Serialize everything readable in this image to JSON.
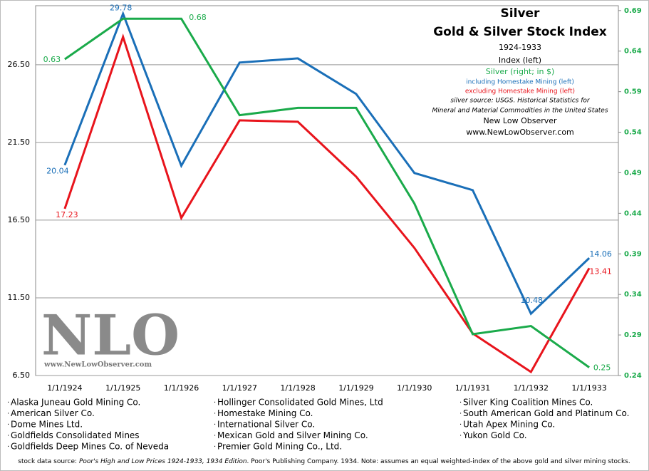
{
  "chart_data": {
    "type": "line",
    "title": "Silver",
    "subtitle": "Gold & Silver Stock Index",
    "period": "1924-1933",
    "y_axis_label": "Index (left)",
    "notes": [
      "silver source: USGS. Historical Statistics for",
      "Mineral and Material Commodities in the United States",
      "New Low Observer",
      "www.NewLowObserver.com"
    ],
    "watermark": [
      "NLO",
      "www.NewLowObserver.com"
    ],
    "categories": [
      "1/1/1924",
      "1/1/1925",
      "1/1/1926",
      "1/1/1927",
      "1/1/1928",
      "1/1/1929",
      "1/1/1930",
      "1/1/1931",
      "1/1/1932",
      "1/1/1933"
    ],
    "series": [
      {
        "name": "including Homestake Mining (left)",
        "color": "#1a6fb8",
        "values": [
          20.04,
          29.78,
          20.0,
          26.64,
          26.91,
          24.62,
          19.53,
          18.43,
          10.48,
          14.06
        ],
        "value_labels": [
          "20.04",
          "29.78",
          null,
          null,
          null,
          null,
          null,
          null,
          "10.48",
          "14.06"
        ]
      },
      {
        "name": "excluding Homestake Mining (left)",
        "color": "#e8141c",
        "values": [
          17.23,
          28.29,
          16.64,
          22.92,
          22.83,
          19.3,
          14.71,
          9.21,
          6.73,
          13.41
        ],
        "value_labels": [
          "17.23",
          null,
          null,
          null,
          null,
          null,
          null,
          null,
          null,
          "13.41"
        ]
      },
      {
        "name": "Silver (right; in $)",
        "color": "#1aaa4a",
        "axis": "y2",
        "values": [
          0.63,
          0.68,
          0.68,
          0.561,
          0.57,
          0.57,
          0.452,
          0.291,
          0.301,
          0.25
        ],
        "value_labels": [
          "0.63",
          null,
          "0.68",
          null,
          null,
          null,
          null,
          null,
          null,
          "0.25"
        ]
      }
    ],
    "ylim": [
      6.5,
      30.3
    ],
    "yticks": [
      {
        "value": 6.5,
        "label": "6.50"
      },
      {
        "value": 11.5,
        "label": "11.50"
      },
      {
        "value": 16.5,
        "label": "16.50"
      },
      {
        "value": 21.5,
        "label": "21.50"
      },
      {
        "value": 26.5,
        "label": "26.50"
      }
    ],
    "y2lim": [
      0.24,
      0.696
    ],
    "y2ticks": [
      0.24,
      0.29,
      0.34,
      0.39,
      0.44,
      0.49,
      0.54,
      0.59,
      0.64,
      0.69
    ],
    "y2_color": "#1aaa4a",
    "grid": true
  },
  "companies": [
    [
      "Alaska Juneau Gold Mining Co.",
      "American Silver Co.",
      "Dome Mines Ltd.",
      "Goldfields Consolidated  Mines",
      "Goldfields Deep Mines Co. of Neveda"
    ],
    [
      "Hollinger Consolidated Gold Mines, Ltd",
      "Homestake Mining Co.",
      "International  Silver Co.",
      "Mexican Gold and Silver Mining Co.",
      "Premier Gold Mining Co., Ltd."
    ],
    [
      "Silver King Coalition Mines Co.",
      "South American Gold and Platinum Co.",
      "Utah Apex Mining Co.",
      "Yukon Gold Co."
    ]
  ],
  "footer": [
    "stock data source: ",
    "Poor's High and Low Prices 1924-1933, 1934 Edition",
    ". Poor's Publishing Company. 1934.  Note: assumes an equal weighted-index of the above gold and silver mining stocks."
  ]
}
